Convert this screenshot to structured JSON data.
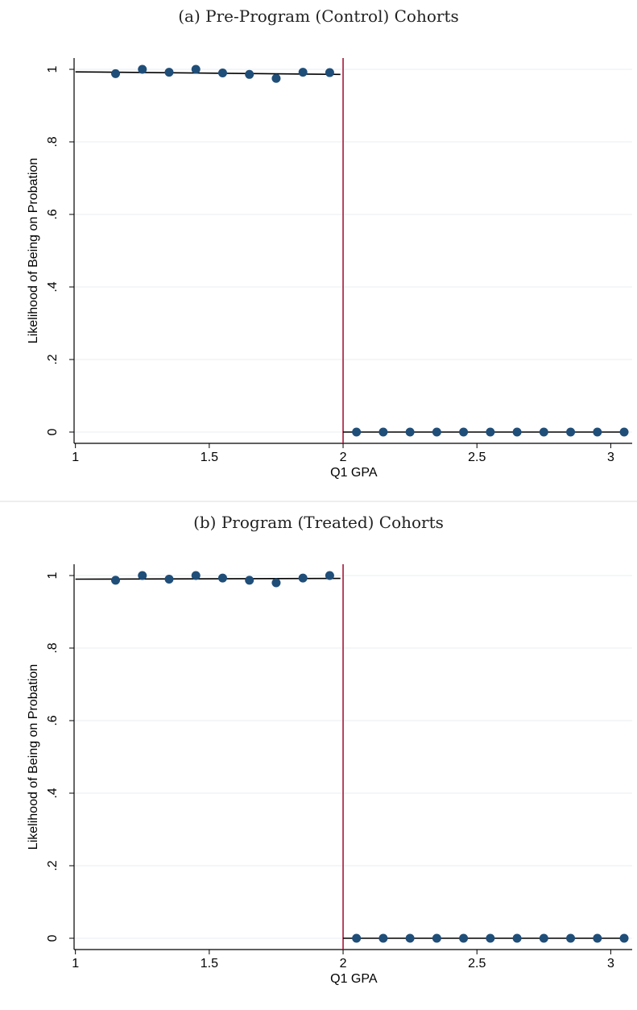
{
  "chart_data": [
    {
      "type": "scatter",
      "title": "(a) Pre-Program (Control) Cohorts",
      "xlabel": "Q1 GPA",
      "ylabel": "Likelihood of Being on Probation",
      "xlim": [
        0.995,
        3.08
      ],
      "ylim": [
        0,
        1
      ],
      "x_ticks": [
        "1",
        "1.5",
        "2",
        "2.5",
        "3"
      ],
      "y_ticks": [
        "0",
        ".2",
        ".4",
        ".6",
        ".8",
        "1"
      ],
      "grid": true,
      "cutoff": 2,
      "series": [
        {
          "points": [
            [
              1.15,
              0.988
            ],
            [
              1.25,
              1.0
            ],
            [
              1.35,
              0.992
            ],
            [
              1.45,
              1.0
            ],
            [
              1.55,
              0.99
            ],
            [
              1.65,
              0.986
            ],
            [
              1.75,
              0.975
            ],
            [
              1.85,
              0.992
            ],
            [
              1.95,
              0.991
            ],
            [
              2.05,
              0.0
            ],
            [
              2.15,
              0.0
            ],
            [
              2.25,
              0.0
            ],
            [
              2.35,
              0.0
            ],
            [
              2.45,
              0.0
            ],
            [
              2.55,
              0.0
            ],
            [
              2.65,
              0.0
            ],
            [
              2.75,
              0.0
            ],
            [
              2.85,
              0.0
            ],
            [
              2.95,
              0.0
            ],
            [
              3.05,
              0.0
            ]
          ]
        }
      ],
      "fit_lines": [
        {
          "x": [
            1.0,
            1.99
          ],
          "y": [
            0.993,
            0.986
          ]
        },
        {
          "x": [
            2.0,
            3.05
          ],
          "y": [
            0.0,
            0.0
          ]
        }
      ],
      "colors": {
        "points": "#1f4e79",
        "fit": "#000000",
        "cutoff": "#a3183a",
        "grid": "#e8eef2"
      }
    },
    {
      "type": "scatter",
      "title": "(b) Program (Treated) Cohorts",
      "xlabel": "Q1 GPA",
      "ylabel": "Likelihood of Being on Probation",
      "xlim": [
        0.995,
        3.08
      ],
      "ylim": [
        0,
        1
      ],
      "x_ticks": [
        "1",
        "1.5",
        "2",
        "2.5",
        "3"
      ],
      "y_ticks": [
        "0",
        ".2",
        ".4",
        ".6",
        ".8",
        "1"
      ],
      "grid": true,
      "cutoff": 2,
      "series": [
        {
          "points": [
            [
              1.15,
              0.987
            ],
            [
              1.25,
              1.0
            ],
            [
              1.35,
              0.99
            ],
            [
              1.45,
              1.0
            ],
            [
              1.55,
              0.993
            ],
            [
              1.65,
              0.987
            ],
            [
              1.75,
              0.98
            ],
            [
              1.85,
              0.993
            ],
            [
              1.95,
              1.0
            ],
            [
              2.05,
              0.0
            ],
            [
              2.15,
              0.0
            ],
            [
              2.25,
              0.0
            ],
            [
              2.35,
              0.0
            ],
            [
              2.45,
              0.0
            ],
            [
              2.55,
              0.0
            ],
            [
              2.65,
              0.0
            ],
            [
              2.75,
              0.0
            ],
            [
              2.85,
              0.0
            ],
            [
              2.95,
              0.0
            ],
            [
              3.05,
              0.0
            ]
          ]
        }
      ],
      "fit_lines": [
        {
          "x": [
            1.0,
            1.99
          ],
          "y": [
            0.99,
            0.992
          ]
        },
        {
          "x": [
            2.0,
            3.05
          ],
          "y": [
            0.0,
            0.0
          ]
        }
      ],
      "colors": {
        "points": "#1f4e79",
        "fit": "#000000",
        "cutoff": "#a3183a",
        "grid": "#e8eef2"
      }
    }
  ]
}
